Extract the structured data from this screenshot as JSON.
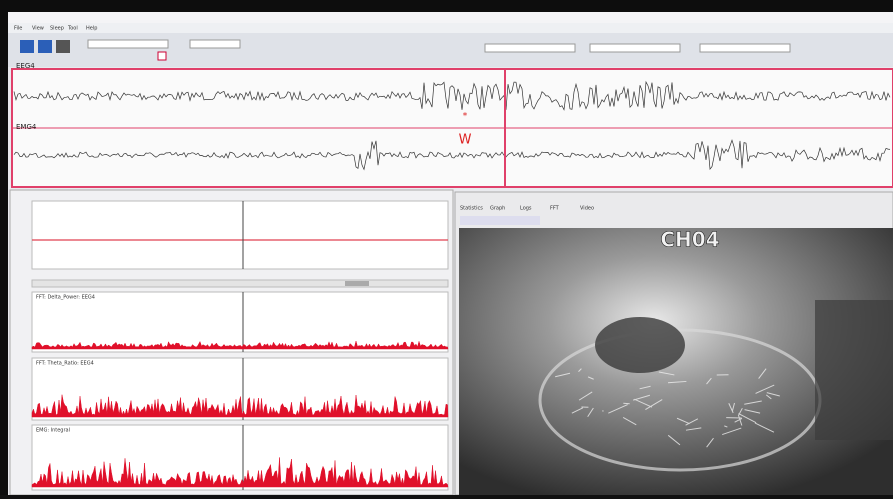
{
  "window": {
    "menu": [
      "File",
      "View",
      "Sleep",
      "Tool",
      "Help"
    ]
  },
  "signals": {
    "channels": [
      "EEG4",
      "EMG4"
    ],
    "score_label": "W"
  },
  "left_panel": {
    "plots": [
      "FFT: Delta_Power: EEG4",
      "FFT: Theta_Ratio: EEG4",
      "EMG: Integral"
    ]
  },
  "right_panel": {
    "tabs": [
      "Statistics",
      "Graph",
      "Logs",
      "FFT",
      "Video"
    ],
    "video_overlay": "CH04"
  }
}
